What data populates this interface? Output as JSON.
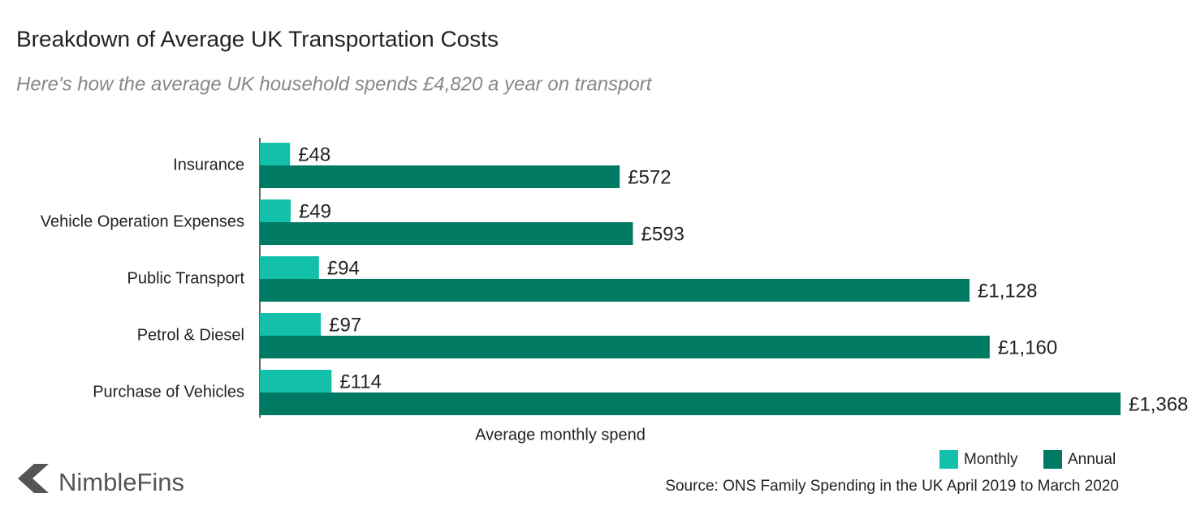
{
  "chart_data": {
    "type": "bar",
    "orientation": "horizontal",
    "title": "Breakdown of Average UK Transportation Costs",
    "subtitle": "Here's how the average UK household spends £4,820 a year on transport",
    "x_label": "Average monthly spend",
    "categories": [
      "Insurance",
      "Vehicle Operation Expenses",
      "Public Transport",
      "Petrol & Diesel",
      "Purchase of Vehicles"
    ],
    "series": [
      {
        "name": "Monthly",
        "color": "#13c1ab",
        "values": [
          48,
          49,
          94,
          97,
          114
        ],
        "value_labels": [
          "£48",
          "£49",
          "£94",
          "£97",
          "£114"
        ]
      },
      {
        "name": "Annual",
        "color": "#007a63",
        "values": [
          572,
          593,
          1128,
          1160,
          1368
        ],
        "value_labels": [
          "£572",
          "£593",
          "£1,128",
          "£1,160",
          "£1,368"
        ]
      }
    ],
    "source": "Source: ONS Family Spending in the UK April 2019 to March 2020",
    "logo": "NimbleFins"
  }
}
